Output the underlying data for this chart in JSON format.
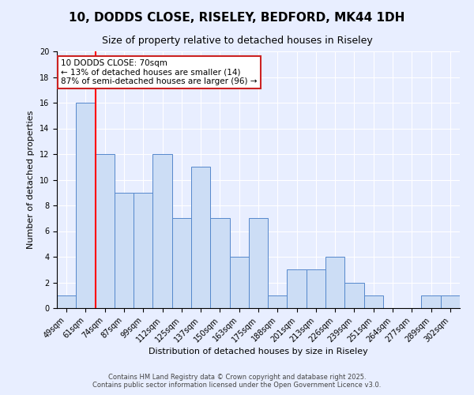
{
  "title": "10, DODDS CLOSE, RISELEY, BEDFORD, MK44 1DH",
  "subtitle": "Size of property relative to detached houses in Riseley",
  "xlabel": "Distribution of detached houses by size in Riseley",
  "ylabel": "Number of detached properties",
  "bins": [
    "49sqm",
    "61sqm",
    "74sqm",
    "87sqm",
    "99sqm",
    "112sqm",
    "125sqm",
    "137sqm",
    "150sqm",
    "163sqm",
    "175sqm",
    "188sqm",
    "201sqm",
    "213sqm",
    "226sqm",
    "239sqm",
    "251sqm",
    "264sqm",
    "277sqm",
    "289sqm",
    "302sqm"
  ],
  "values": [
    1,
    16,
    12,
    9,
    9,
    12,
    7,
    11,
    7,
    4,
    7,
    1,
    3,
    3,
    4,
    2,
    1,
    0,
    0,
    1,
    1
  ],
  "bar_color": "#ccddf5",
  "bar_edge_color": "#5588cc",
  "background_color": "#e8eeff",
  "grid_color": "#ffffff",
  "ylim": [
    0,
    20
  ],
  "yticks": [
    0,
    2,
    4,
    6,
    8,
    10,
    12,
    14,
    16,
    18,
    20
  ],
  "red_line_index": 1.5,
  "annotation_text": "10 DODDS CLOSE: 70sqm\n← 13% of detached houses are smaller (14)\n87% of semi-detached houses are larger (96) →",
  "footer_text": "Contains HM Land Registry data © Crown copyright and database right 2025.\nContains public sector information licensed under the Open Government Licence v3.0.",
  "title_fontsize": 11,
  "subtitle_fontsize": 9,
  "annot_fontsize": 7.5,
  "footer_fontsize": 6,
  "ylabel_fontsize": 8,
  "xlabel_fontsize": 8,
  "tick_fontsize": 7
}
